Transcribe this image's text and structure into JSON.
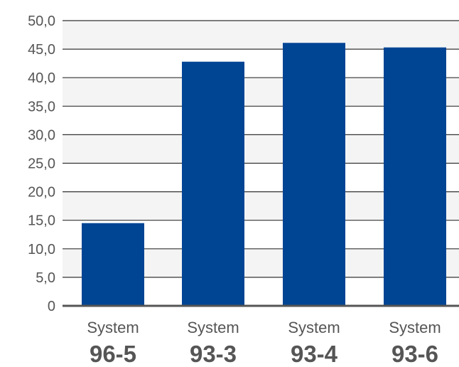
{
  "chart_data": {
    "type": "bar",
    "categories": [
      {
        "line1": "System",
        "line2": "96-5"
      },
      {
        "line1": "System",
        "line2": "93-3"
      },
      {
        "line1": "System",
        "line2": "93-4"
      },
      {
        "line1": "System",
        "line2": "93-6"
      }
    ],
    "values": [
      14.5,
      42.8,
      46.1,
      45.3
    ],
    "ylim": [
      0,
      50
    ],
    "yticks": [
      "0",
      "5,0",
      "10,0",
      "15,0",
      "20,0",
      "25,0",
      "30,0",
      "35,0",
      "40,0",
      "45,0",
      "50,0"
    ],
    "grid": true,
    "title": "",
    "xlabel": "",
    "ylabel": "",
    "colors": {
      "bar": "#004494",
      "grid": "#333333",
      "band": "#f4f4f4",
      "axis": "#555555",
      "text": "#555555"
    }
  }
}
